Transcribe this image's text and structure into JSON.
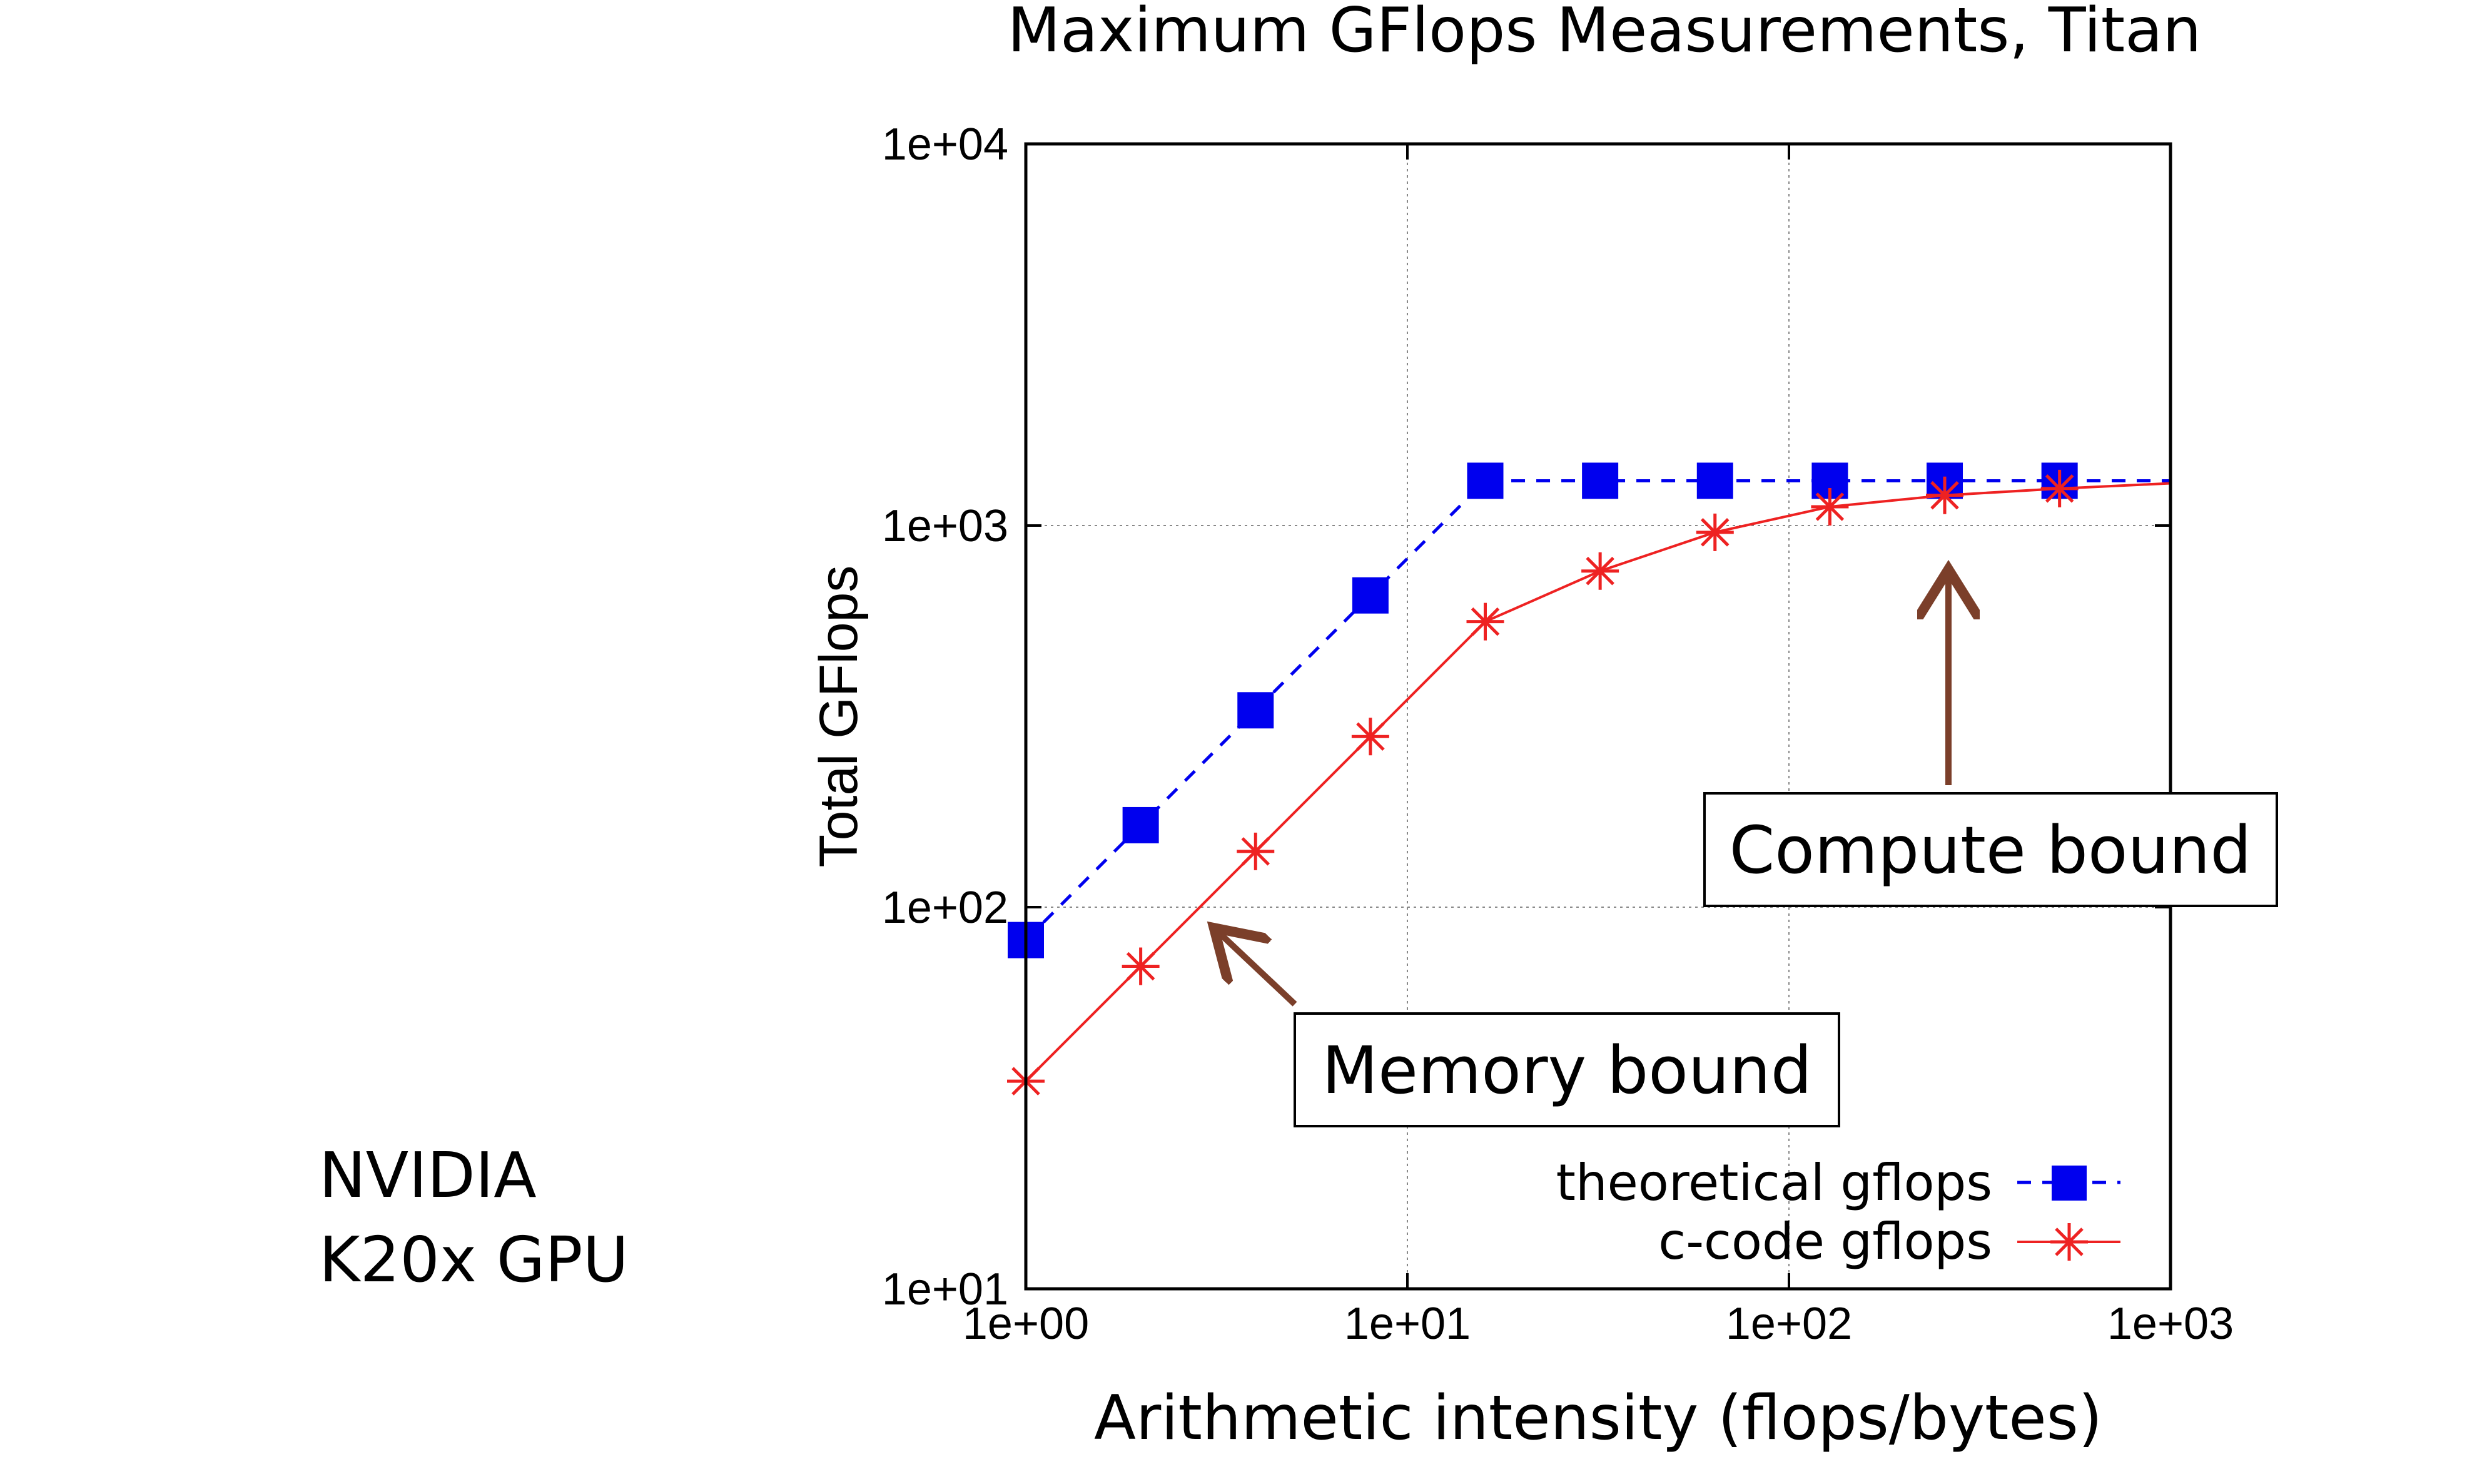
{
  "device": {
    "line1": "NVIDIA",
    "line2": "K20x GPU"
  },
  "annotations": {
    "memory": "Memory bound",
    "compute": "Compute bound",
    "arrow_color": "#7b3f2a"
  },
  "chart_data": {
    "type": "line",
    "title": "Maximum GFlops Measurements, Titan",
    "xlabel": "Arithmetic intensity (flops/bytes)",
    "ylabel": "Total GFlops",
    "xscale": "log",
    "yscale": "log",
    "xlim": [
      1,
      1000
    ],
    "ylim": [
      10,
      10000
    ],
    "xticks": [
      "1e+00",
      "1e+01",
      "1e+02",
      "1e+03"
    ],
    "yticks": [
      "1e+01",
      "1e+02",
      "1e+03",
      "1e+04"
    ],
    "grid": true,
    "legend_position": "bottom-right",
    "series": [
      {
        "name": "theoretical gflops",
        "marker": "square",
        "line": "dashed",
        "color": "#0000ee",
        "x": [
          1,
          2,
          4,
          8,
          16,
          32,
          64,
          128,
          256,
          512
        ],
        "y": [
          82,
          164,
          328,
          656,
          1310,
          1310,
          1310,
          1310,
          1310,
          1310
        ],
        "extend_to_x": 1000
      },
      {
        "name": "c-code gflops",
        "marker": "star",
        "line": "solid",
        "color": "#ee2222",
        "x": [
          1,
          2,
          4,
          8,
          16,
          32,
          64,
          128,
          256,
          512
        ],
        "y": [
          35,
          70,
          140,
          280,
          560,
          760,
          960,
          1120,
          1200,
          1250
        ],
        "extend_to_x": 1000,
        "extend_to_y": 1290
      }
    ]
  }
}
